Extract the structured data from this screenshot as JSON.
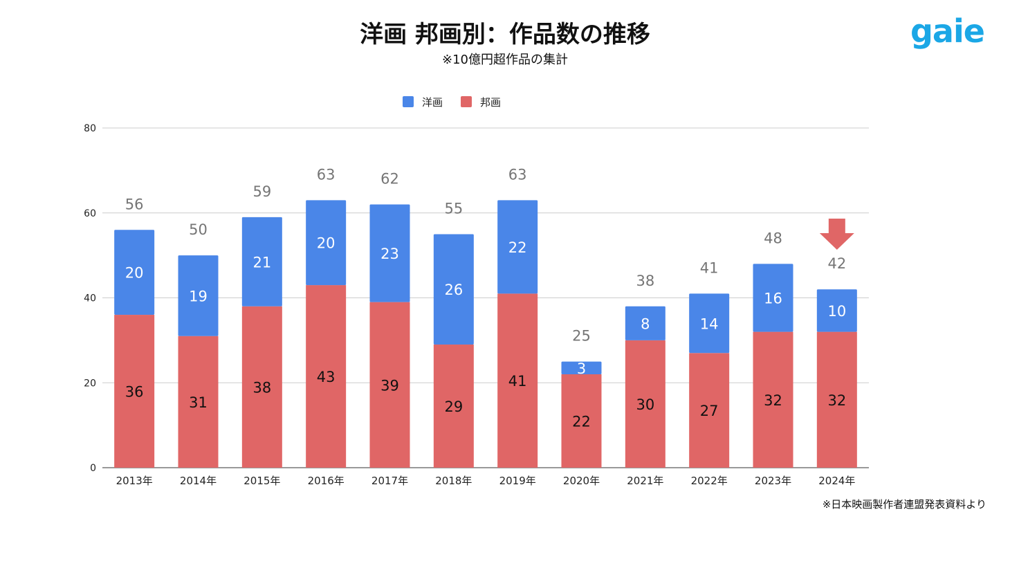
{
  "title": "洋画 邦画別：作品数の推移",
  "subtitle": "※10億円超作品の集計",
  "logo": "gaie",
  "source_note": "※日本映画製作者連盟発表資料より",
  "chart_data": {
    "type": "bar",
    "stacked": true,
    "categories": [
      "2013年",
      "2014年",
      "2015年",
      "2016年",
      "2017年",
      "2018年",
      "2019年",
      "2020年",
      "2021年",
      "2022年",
      "2023年",
      "2024年"
    ],
    "series": [
      {
        "name": "邦画",
        "color": "#e06666",
        "values": [
          36,
          31,
          38,
          43,
          39,
          29,
          41,
          22,
          30,
          27,
          32,
          32
        ]
      },
      {
        "name": "洋画",
        "color": "#4a86e8",
        "values": [
          20,
          19,
          21,
          20,
          23,
          26,
          22,
          3,
          8,
          14,
          16,
          10
        ]
      }
    ],
    "totals": [
      56,
      50,
      59,
      63,
      62,
      55,
      63,
      25,
      38,
      41,
      48,
      42
    ],
    "ylim": [
      0,
      80
    ],
    "yticks": [
      0,
      20,
      40,
      60,
      80
    ],
    "grid": true,
    "legend": {
      "position": "top",
      "entries": [
        "洋画",
        "邦画"
      ]
    },
    "annotation": {
      "type": "down-arrow",
      "category": "2024年",
      "color": "#e06666"
    }
  }
}
